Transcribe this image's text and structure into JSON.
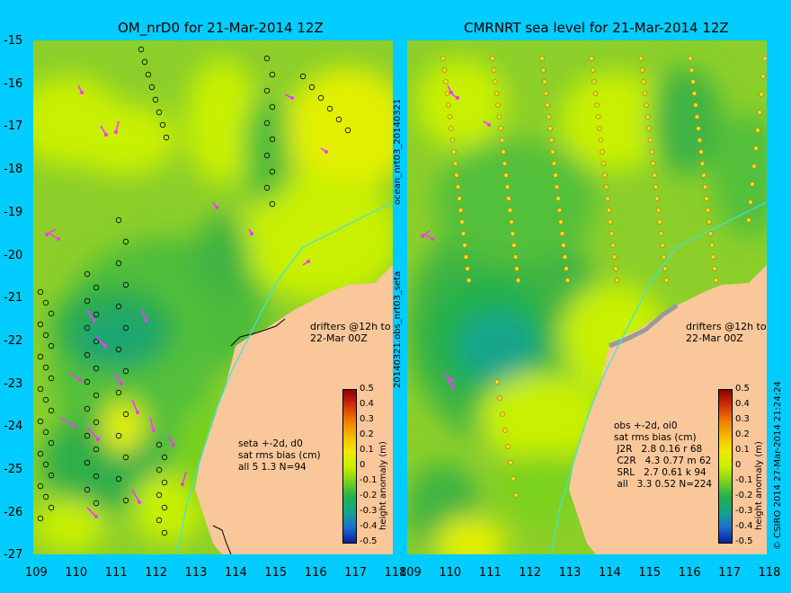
{
  "left_panel": {
    "title": "OM_nrD0 for 21-Mar-2014 12Z",
    "drifters_note_1": "drifters @12h to",
    "drifters_note_2": "22-Mar 00Z",
    "stats": "seta +-2d, d0\nsat rms bias (cm)\nall 5 1.3 N=94"
  },
  "right_panel": {
    "title": "CMRNRT sea level  for 21-Mar-2014 12Z",
    "drifters_note_1": "drifters @12h to",
    "drifters_note_2": "22-Mar 00Z",
    "stats": "obs +-2d, oi0\nsat rms bias (cm)\n J2R   2.8 0.16 r 68\n C2R   4.3 0.77 m 62\n SRL   2.7 0.61 k 94\n all   3.3 0.52 N=224"
  },
  "y_axis_labels": [
    "-15",
    "-16",
    "-17",
    "-18",
    "-19",
    "-20",
    "-21",
    "-22",
    "-23",
    "-24",
    "-25",
    "-26",
    "-27"
  ],
  "x_axis_labels": [
    "109",
    "110",
    "111",
    "112",
    "113",
    "114",
    "115",
    "116",
    "117",
    "118"
  ],
  "colorbar": {
    "label": "height anomaly (m)",
    "ticks": [
      "0.5",
      "0.4",
      "0.3",
      "0.2",
      "0.1",
      "0",
      "-0.1",
      "-0.2",
      "-0.3",
      "-0.4",
      "-0.5"
    ],
    "colors": [
      "#8b0000",
      "#d2300a",
      "#ef7a00",
      "#f5b800",
      "#f2e800",
      "#c8f000",
      "#7ad21e",
      "#22b14c",
      "#12a58c",
      "#1a6fd1",
      "#0a1e9a"
    ]
  },
  "middle_vertical_text": {
    "top": "ocean_nrt03_20140321",
    "bottom": "20140321.obs_nrt03_seta"
  },
  "credit": "© CSIRO 2014  27-Mar-2014 21:24:24",
  "colors": {
    "background": "#00ccff",
    "land": "#f9c79a",
    "drifter": "#ff33ff",
    "track_line": "#39e5e5"
  }
}
